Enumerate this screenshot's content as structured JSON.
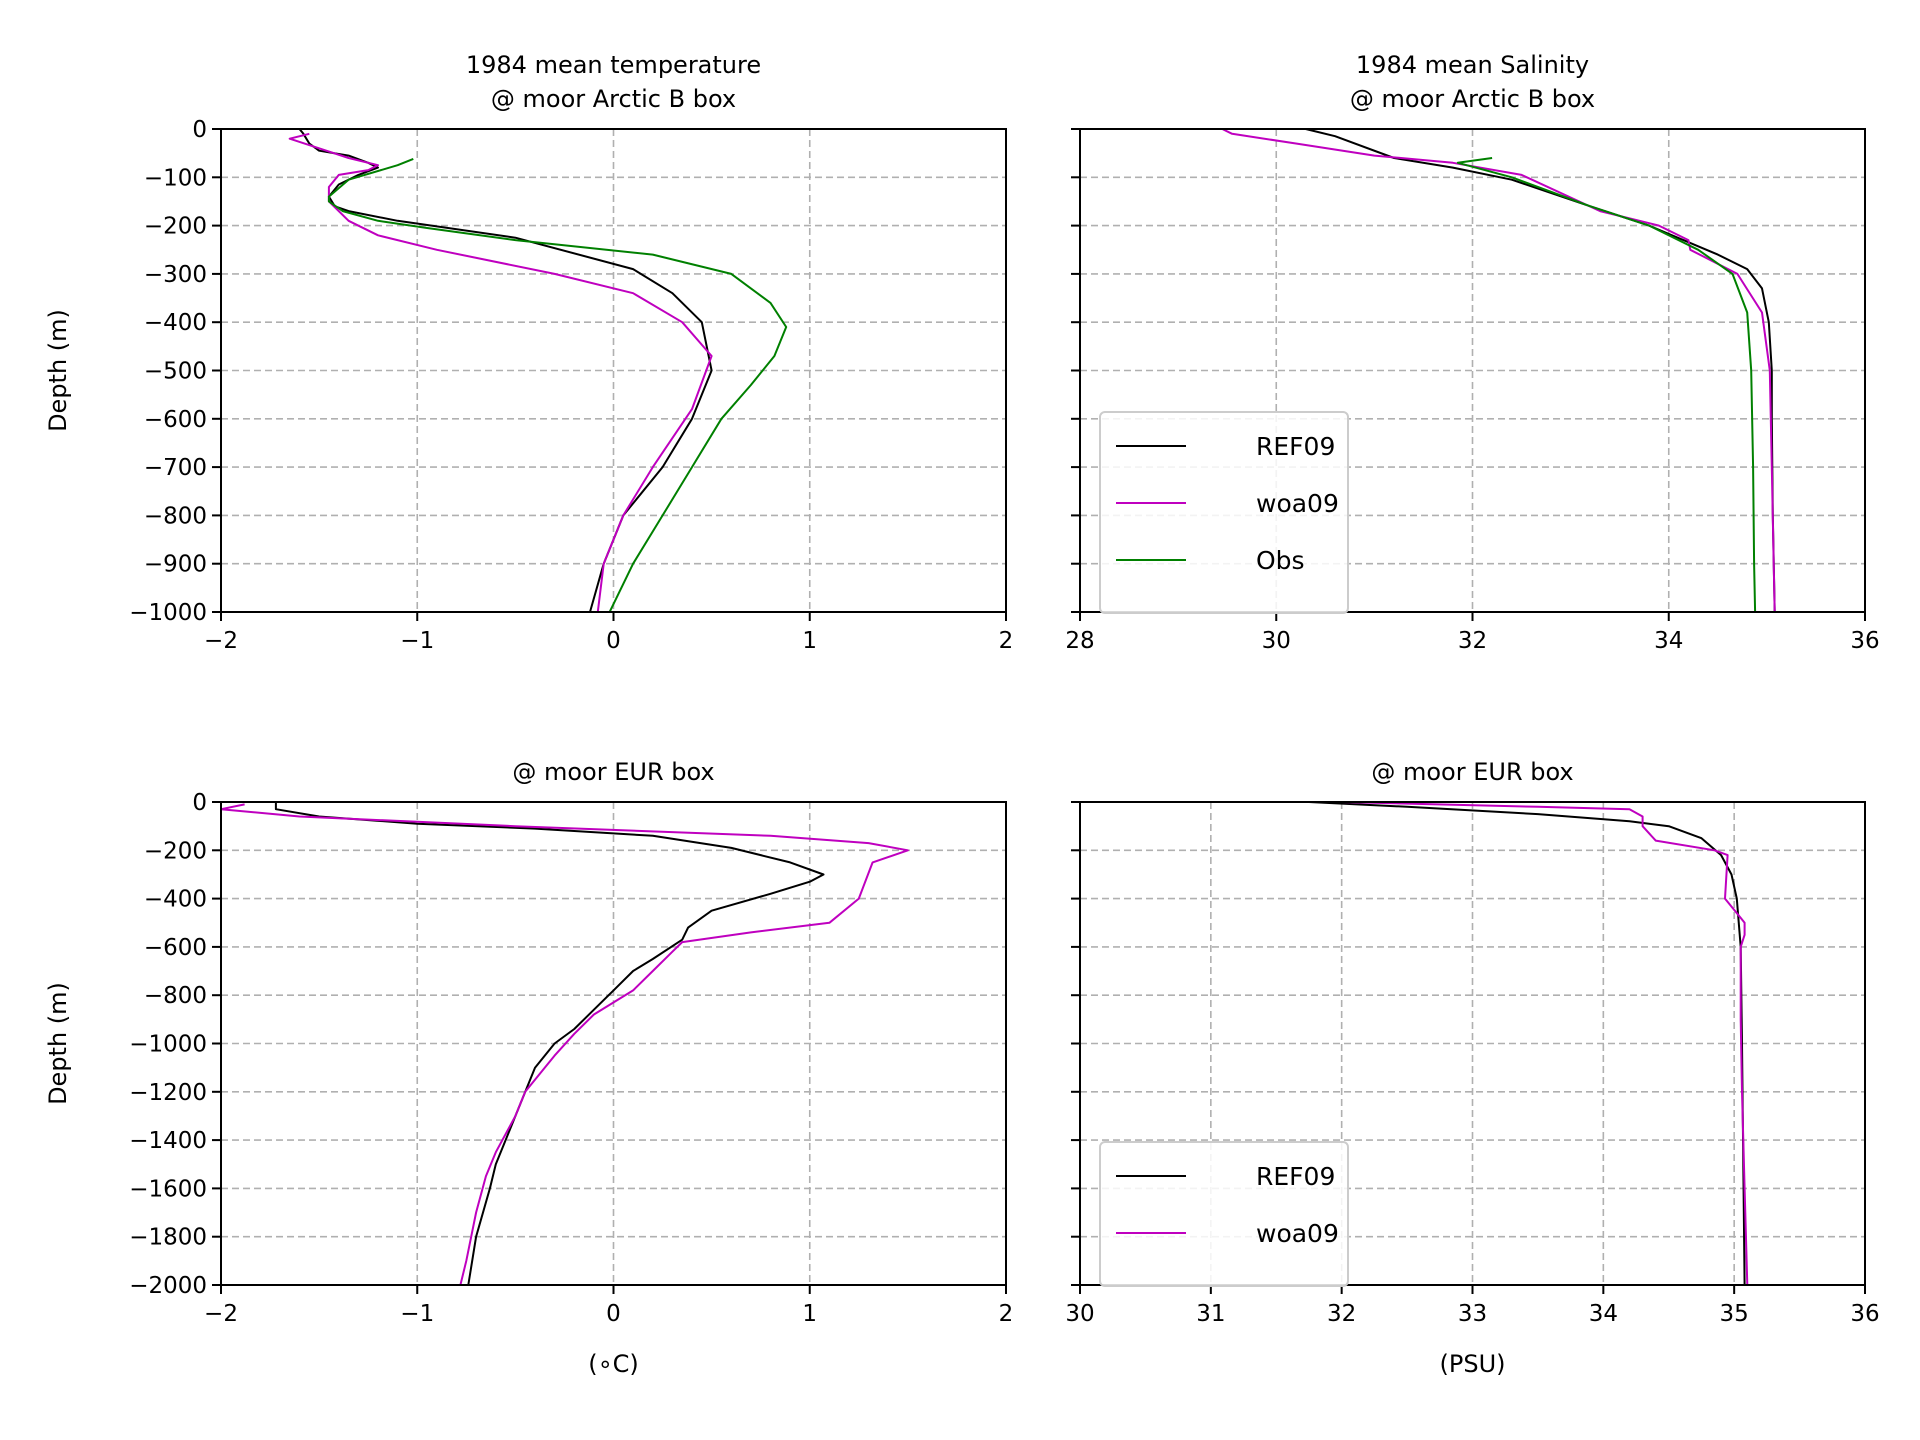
{
  "chart_data": [
    {
      "type": "line",
      "title_lines": [
        "1984 mean temperature",
        "@ moor Arctic B box"
      ],
      "xlabel": "",
      "ylabel": "Depth (m)",
      "xlim": [
        -2,
        2
      ],
      "ylim": [
        -1000,
        0
      ],
      "xticks": [
        -2,
        -1,
        0,
        1,
        2
      ],
      "xtick_labels": [
        "−2",
        "−1",
        "0",
        "1",
        "2"
      ],
      "yticks": [
        0,
        -100,
        -200,
        -300,
        -400,
        -500,
        -600,
        -700,
        -800,
        -900,
        -1000
      ],
      "ytick_labels": [
        "0",
        "−100",
        "−200",
        "−300",
        "−400",
        "−500",
        "−600",
        "−700",
        "−800",
        "−900",
        "−1000"
      ],
      "grid": true,
      "series": [
        {
          "name": "REF09",
          "color": "#000000",
          "points": [
            [
              -1.6,
              0
            ],
            [
              -1.58,
              -10
            ],
            [
              -1.55,
              -30
            ],
            [
              -1.5,
              -45
            ],
            [
              -1.35,
              -55
            ],
            [
              -1.25,
              -70
            ],
            [
              -1.2,
              -80
            ],
            [
              -1.3,
              -95
            ],
            [
              -1.4,
              -115
            ],
            [
              -1.45,
              -140
            ],
            [
              -1.42,
              -160
            ],
            [
              -1.35,
              -170
            ],
            [
              -1.1,
              -190
            ],
            [
              -0.5,
              -225
            ],
            [
              0.1,
              -290
            ],
            [
              0.3,
              -340
            ],
            [
              0.45,
              -400
            ],
            [
              0.5,
              -500
            ],
            [
              0.4,
              -600
            ],
            [
              0.25,
              -700
            ],
            [
              0.05,
              -800
            ],
            [
              -0.05,
              -900
            ],
            [
              -0.12,
              -1000
            ]
          ]
        },
        {
          "name": "woa09",
          "color": "#bf00bf",
          "points": [
            [
              -1.55,
              -10
            ],
            [
              -1.65,
              -20
            ],
            [
              -1.5,
              -40
            ],
            [
              -1.35,
              -60
            ],
            [
              -1.2,
              -75
            ],
            [
              -1.25,
              -85
            ],
            [
              -1.4,
              -95
            ],
            [
              -1.45,
              -120
            ],
            [
              -1.45,
              -150
            ],
            [
              -1.35,
              -190
            ],
            [
              -1.2,
              -220
            ],
            [
              -0.9,
              -250
            ],
            [
              -0.3,
              -300
            ],
            [
              0.1,
              -340
            ],
            [
              0.35,
              -400
            ],
            [
              0.5,
              -470
            ],
            [
              0.4,
              -580
            ],
            [
              0.2,
              -700
            ],
            [
              0.05,
              -800
            ],
            [
              -0.05,
              -900
            ],
            [
              -0.08,
              -1000
            ]
          ]
        },
        {
          "name": "Obs",
          "color": "#008000",
          "points": [
            [
              -1.02,
              -62
            ],
            [
              -1.1,
              -75
            ],
            [
              -1.35,
              -105
            ],
            [
              -1.45,
              -140
            ],
            [
              -1.45,
              -150
            ],
            [
              -1.38,
              -170
            ],
            [
              -1.2,
              -190
            ],
            [
              -0.95,
              -205
            ],
            [
              -0.5,
              -230
            ],
            [
              0.2,
              -260
            ],
            [
              0.6,
              -300
            ],
            [
              0.8,
              -360
            ],
            [
              0.88,
              -410
            ],
            [
              0.85,
              -440
            ],
            [
              0.82,
              -470
            ],
            [
              0.7,
              -530
            ],
            [
              0.55,
              -600
            ],
            [
              0.4,
              -700
            ],
            [
              0.25,
              -800
            ],
            [
              0.1,
              -900
            ],
            [
              -0.02,
              -1000
            ]
          ]
        }
      ]
    },
    {
      "type": "line",
      "title_lines": [
        "1984 mean Salinity",
        "@ moor Arctic B box"
      ],
      "xlabel": "",
      "ylabel": "",
      "xlim": [
        28,
        36
      ],
      "ylim": [
        -1000,
        0
      ],
      "xticks": [
        28,
        30,
        32,
        34,
        36
      ],
      "xtick_labels": [
        "28",
        "30",
        "32",
        "34",
        "36"
      ],
      "yticks": [
        0,
        -100,
        -200,
        -300,
        -400,
        -500,
        -600,
        -700,
        -800,
        -900,
        -1000
      ],
      "grid": true,
      "legend": {
        "position": "lower-left",
        "entries": [
          "REF09",
          "woa09",
          "Obs"
        ]
      },
      "series": [
        {
          "name": "REF09",
          "color": "#000000",
          "points": [
            [
              30.3,
              0
            ],
            [
              30.6,
              -15
            ],
            [
              31.2,
              -60
            ],
            [
              31.8,
              -80
            ],
            [
              32.4,
              -105
            ],
            [
              33.2,
              -160
            ],
            [
              33.8,
              -200
            ],
            [
              34.5,
              -260
            ],
            [
              34.8,
              -290
            ],
            [
              34.95,
              -330
            ],
            [
              35.02,
              -400
            ],
            [
              35.05,
              -500
            ],
            [
              35.05,
              -600
            ],
            [
              35.06,
              -800
            ],
            [
              35.08,
              -1000
            ]
          ]
        },
        {
          "name": "woa09",
          "color": "#bf00bf",
          "points": [
            [
              29.45,
              0
            ],
            [
              29.55,
              -10
            ],
            [
              30.2,
              -30
            ],
            [
              31.0,
              -55
            ],
            [
              31.8,
              -70
            ],
            [
              32.5,
              -95
            ],
            [
              33.3,
              -170
            ],
            [
              33.9,
              -200
            ],
            [
              34.2,
              -230
            ],
            [
              34.22,
              -250
            ],
            [
              34.7,
              -300
            ],
            [
              34.95,
              -380
            ],
            [
              35.03,
              -500
            ],
            [
              35.05,
              -700
            ],
            [
              35.07,
              -900
            ],
            [
              35.08,
              -1000
            ]
          ]
        },
        {
          "name": "Obs",
          "color": "#008000",
          "points": [
            [
              32.2,
              -60
            ],
            [
              31.85,
              -70
            ],
            [
              32.4,
              -100
            ],
            [
              33.2,
              -160
            ],
            [
              33.8,
              -200
            ],
            [
              34.3,
              -250
            ],
            [
              34.65,
              -300
            ],
            [
              34.8,
              -380
            ],
            [
              34.84,
              -500
            ],
            [
              34.86,
              -700
            ],
            [
              34.87,
              -900
            ],
            [
              34.88,
              -1000
            ]
          ]
        }
      ]
    },
    {
      "type": "line",
      "title_lines": [
        "@ moor EUR box"
      ],
      "xlabel": "(∘C)",
      "ylabel": "Depth (m)",
      "xlim": [
        -2,
        2
      ],
      "ylim": [
        -2000,
        0
      ],
      "xticks": [
        -2,
        -1,
        0,
        1,
        2
      ],
      "xtick_labels": [
        "−2",
        "−1",
        "0",
        "1",
        "2"
      ],
      "yticks": [
        0,
        -200,
        -400,
        -600,
        -800,
        -1000,
        -1200,
        -1400,
        -1600,
        -1800,
        -2000
      ],
      "ytick_labels": [
        "0",
        "−200",
        "−400",
        "−600",
        "−800",
        "−1000",
        "−1200",
        "−1400",
        "−1600",
        "−1800",
        "−2000"
      ],
      "grid": true,
      "series": [
        {
          "name": "REF09",
          "color": "#000000",
          "points": [
            [
              -1.72,
              0
            ],
            [
              -1.72,
              -30
            ],
            [
              -1.5,
              -60
            ],
            [
              -1.0,
              -90
            ],
            [
              -0.4,
              -110
            ],
            [
              0.2,
              -140
            ],
            [
              0.6,
              -190
            ],
            [
              0.9,
              -250
            ],
            [
              1.07,
              -300
            ],
            [
              1.0,
              -330
            ],
            [
              0.8,
              -380
            ],
            [
              0.5,
              -450
            ],
            [
              0.38,
              -520
            ],
            [
              0.35,
              -570
            ],
            [
              0.2,
              -650
            ],
            [
              0.1,
              -700
            ],
            [
              0.0,
              -780
            ],
            [
              -0.1,
              -860
            ],
            [
              -0.2,
              -940
            ],
            [
              -0.3,
              -1000
            ],
            [
              -0.4,
              -1100
            ],
            [
              -0.5,
              -1300
            ],
            [
              -0.6,
              -1500
            ],
            [
              -0.63,
              -1600
            ],
            [
              -0.7,
              -1800
            ],
            [
              -0.74,
              -2000
            ]
          ]
        },
        {
          "name": "woa09",
          "color": "#bf00bf",
          "points": [
            [
              -1.88,
              -10
            ],
            [
              -2.0,
              -30
            ],
            [
              -1.6,
              -60
            ],
            [
              -0.5,
              -100
            ],
            [
              0.8,
              -140
            ],
            [
              1.3,
              -170
            ],
            [
              1.5,
              -200
            ],
            [
              1.32,
              -250
            ],
            [
              1.25,
              -400
            ],
            [
              1.1,
              -500
            ],
            [
              0.7,
              -540
            ],
            [
              0.35,
              -580
            ],
            [
              0.3,
              -620
            ],
            [
              0.2,
              -700
            ],
            [
              0.1,
              -780
            ],
            [
              -0.1,
              -880
            ],
            [
              -0.2,
              -960
            ],
            [
              -0.3,
              -1050
            ],
            [
              -0.45,
              -1200
            ],
            [
              -0.5,
              -1300
            ],
            [
              -0.6,
              -1450
            ],
            [
              -0.65,
              -1550
            ],
            [
              -0.7,
              -1700
            ],
            [
              -0.75,
              -1900
            ],
            [
              -0.78,
              -2000
            ]
          ]
        }
      ]
    },
    {
      "type": "line",
      "title_lines": [
        "@ moor EUR box"
      ],
      "xlabel": "(PSU)",
      "ylabel": "",
      "xlim": [
        30,
        36
      ],
      "ylim": [
        -2000,
        0
      ],
      "xticks": [
        30,
        31,
        32,
        33,
        34,
        35,
        36
      ],
      "xtick_labels": [
        "30",
        "31",
        "32",
        "33",
        "34",
        "35",
        "36"
      ],
      "yticks": [
        0,
        -200,
        -400,
        -600,
        -800,
        -1000,
        -1200,
        -1400,
        -1600,
        -1800,
        -2000
      ],
      "grid": true,
      "legend": {
        "position": "lower-left",
        "entries": [
          "REF09",
          "woa09"
        ]
      },
      "series": [
        {
          "name": "REF09",
          "color": "#000000",
          "points": [
            [
              31.75,
              0
            ],
            [
              32.5,
              -20
            ],
            [
              33.5,
              -50
            ],
            [
              34.2,
              -80
            ],
            [
              34.5,
              -100
            ],
            [
              34.75,
              -150
            ],
            [
              34.9,
              -220
            ],
            [
              34.98,
              -300
            ],
            [
              35.02,
              -400
            ],
            [
              35.05,
              -600
            ],
            [
              35.06,
              -1000
            ],
            [
              35.07,
              -1500
            ],
            [
              35.08,
              -2000
            ]
          ]
        },
        {
          "name": "woa09",
          "color": "#bf00bf",
          "points": [
            [
              32.0,
              0
            ],
            [
              33.5,
              -20
            ],
            [
              34.2,
              -30
            ],
            [
              34.3,
              -60
            ],
            [
              34.3,
              -100
            ],
            [
              34.4,
              -160
            ],
            [
              34.85,
              -200
            ],
            [
              34.95,
              -220
            ],
            [
              34.93,
              -400
            ],
            [
              35.05,
              -480
            ],
            [
              35.08,
              -500
            ],
            [
              35.08,
              -550
            ],
            [
              35.05,
              -600
            ],
            [
              35.05,
              -900
            ],
            [
              35.06,
              -1200
            ],
            [
              35.08,
              -1600
            ],
            [
              35.1,
              -2000
            ]
          ]
        }
      ]
    }
  ]
}
